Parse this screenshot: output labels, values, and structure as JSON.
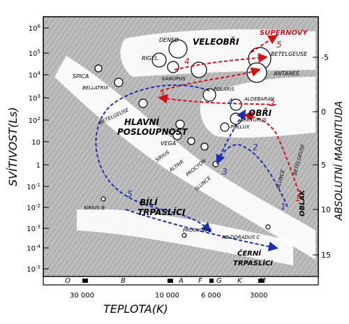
{
  "title": "",
  "y_left": {
    "label": "SVÍTIVOST(Ls)",
    "ticks": [
      "10^6",
      "10^5",
      "10^4",
      "10^3",
      "10^2",
      "10",
      "1",
      "10^-1",
      "10^-2",
      "10^-3",
      "10^-4",
      "10^-5"
    ]
  },
  "y_right": {
    "label": "ABSOLUTNÍ MAGNITUDA",
    "ticks": [
      "-5",
      "0",
      "5",
      "10",
      "15"
    ]
  },
  "x_axis": {
    "label": "TEPLOTA(K)",
    "spectral_classes": [
      "O",
      "B",
      "A",
      "F",
      "G",
      "K",
      "M"
    ],
    "temps": [
      "30 000",
      "10 000",
      "6 000",
      "3000"
    ]
  },
  "regions": {
    "supergiants": "VELEOBŘI",
    "supernova": "SUPERNOVY",
    "main_sequence_1": "HLAVNÍ",
    "main_sequence_2": "POSLOUPNOST",
    "giants": "OBŘI",
    "white_dwarfs_1": "BÍLÍ",
    "white_dwarfs_2": "TRPASLÍCI",
    "black_dwarfs_1": "ČERNÍ",
    "black_dwarfs_2": "TRPASLÍCI",
    "cloud": "OBLAK"
  },
  "stars": {
    "deneb": "DENEB",
    "rigel": "RIGEL",
    "canopus": "KANOPUS",
    "polaris": "POLARIS",
    "betelgeuse_top": "BETELGEUSE",
    "antares": "ANTARES",
    "spica": "SPICA",
    "bellatrix": "BELLATRIX",
    "betelgeuse_ms": "BETELGEUSE",
    "aldebaran": "ALDEBARAN",
    "arcturus": "ARKTURUS",
    "pollux": "POLLUX",
    "vega": "VEGA",
    "sirius": "SIRIUS",
    "altair": "ALTAIR",
    "procyon": "PROCYON",
    "sun": "SLUNCE",
    "sun_path": "SLUNCE",
    "betelgeuse_path": "BETELGEUSE",
    "sirius_b": "SIRIUS B",
    "procyon_b": "PROCYON B",
    "ab_doradus": "AB DORADUS C"
  },
  "path_steps": {
    "red": [
      "1",
      "2",
      "3",
      "4",
      "5"
    ],
    "blue": [
      "1",
      "2",
      "3",
      "4",
      "5"
    ]
  },
  "colors": {
    "red_path": "#d0121b",
    "blue_path": "#1a2fb0",
    "band": "#c9c9c9"
  }
}
